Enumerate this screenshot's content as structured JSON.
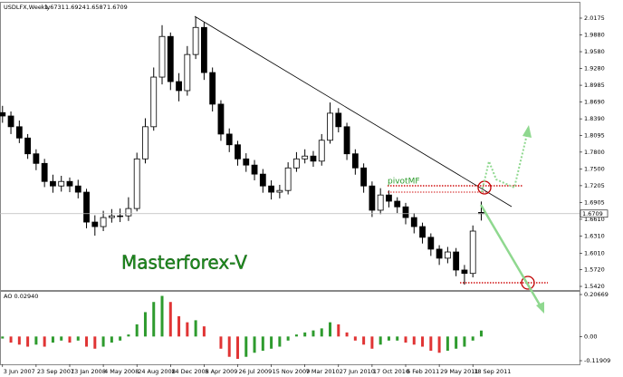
{
  "chart_data": [
    {
      "type": "candlestick",
      "title": "USDLFX,Weekly",
      "annotations": [
        "pivotMF",
        "Masterforex-V"
      ],
      "up_color": "#ffffff",
      "down_color": "#000000",
      "outline_color": "#000000",
      "xlim": [
        -0.3,
        68.7
      ],
      "ylim": [
        1.5356,
        2.0448
      ],
      "yticks": [
        2.0175,
        {
          "value": 1.988,
          "label": "1.9880"
        },
        {
          "value": 1.958,
          "label": "1.9580"
        },
        {
          "value": 1.928,
          "label": "1.9280"
        },
        1.8985,
        {
          "value": 1.869,
          "label": "1.8690"
        },
        {
          "value": 1.839,
          "label": "1.8390"
        },
        1.8095,
        {
          "value": 1.78,
          "label": "1.7800"
        },
        {
          "value": 1.75,
          "label": "1.7500"
        },
        1.7205,
        1.6905,
        {
          "value": 1.661,
          "label": "1.6610"
        },
        {
          "value": 1.631,
          "label": "1.6310"
        },
        {
          "value": 1.601,
          "label": "1.6010"
        },
        {
          "value": 1.572,
          "label": "1.5720"
        },
        {
          "value": 1.542,
          "label": "1.5420"
        }
      ],
      "open": [
        1.85,
        1.844,
        1.825,
        1.805,
        1.777,
        1.76,
        1.728,
        1.72,
        1.728,
        1.72,
        1.709,
        1.656,
        1.648,
        1.664,
        1.667,
        1.667,
        1.68,
        1.768,
        1.825,
        1.913,
        1.985,
        1.905,
        1.889,
        1.953,
        2.001,
        1.921,
        1.865,
        1.812,
        1.793,
        1.768,
        1.757,
        1.741,
        1.72,
        1.709,
        1.712,
        1.752,
        1.768,
        1.773,
        1.764,
        1.801,
        1.849,
        1.825,
        1.777,
        1.752,
        1.72,
        1.677,
        1.704,
        1.693,
        1.683,
        1.664,
        1.648,
        1.629,
        1.608,
        1.592,
        1.603,
        1.571,
        1.565,
        1.6731
      ],
      "high": [
        1.862,
        1.852,
        1.836,
        1.812,
        1.785,
        1.768,
        1.74,
        1.738,
        1.735,
        1.731,
        1.715,
        1.668,
        1.676,
        1.679,
        1.68,
        1.7,
        1.779,
        1.84,
        1.93,
        2.005,
        1.992,
        1.92,
        1.968,
        2.02,
        2.01,
        1.93,
        1.872,
        1.822,
        1.8,
        1.778,
        1.766,
        1.75,
        1.73,
        1.722,
        1.762,
        1.78,
        1.785,
        1.782,
        1.812,
        1.868,
        1.858,
        1.832,
        1.785,
        1.76,
        1.728,
        1.716,
        1.712,
        1.7,
        1.69,
        1.672,
        1.655,
        1.636,
        1.615,
        1.612,
        1.61,
        1.58,
        1.65,
        1.6924
      ],
      "low": [
        1.832,
        1.812,
        1.796,
        1.768,
        1.748,
        1.718,
        1.708,
        1.71,
        1.709,
        1.698,
        1.645,
        1.632,
        1.64,
        1.655,
        1.656,
        1.658,
        1.675,
        1.76,
        1.818,
        1.9,
        1.89,
        1.87,
        1.88,
        1.945,
        1.908,
        1.852,
        1.8,
        1.78,
        1.756,
        1.745,
        1.73,
        1.708,
        1.696,
        1.698,
        1.705,
        1.745,
        1.76,
        1.754,
        1.756,
        1.795,
        1.815,
        1.766,
        1.74,
        1.708,
        1.665,
        1.67,
        1.682,
        1.672,
        1.652,
        1.636,
        1.618,
        1.596,
        1.58,
        1.583,
        1.56,
        1.545,
        1.558,
        1.6587
      ],
      "close": [
        1.844,
        1.825,
        1.805,
        1.777,
        1.76,
        1.728,
        1.72,
        1.728,
        1.72,
        1.709,
        1.656,
        1.648,
        1.664,
        1.667,
        1.667,
        1.68,
        1.768,
        1.825,
        1.913,
        1.985,
        1.905,
        1.889,
        1.953,
        2.001,
        1.921,
        1.865,
        1.812,
        1.793,
        1.768,
        1.757,
        1.741,
        1.72,
        1.709,
        1.712,
        1.752,
        1.768,
        1.773,
        1.764,
        1.801,
        1.849,
        1.825,
        1.777,
        1.752,
        1.72,
        1.677,
        1.704,
        1.693,
        1.683,
        1.664,
        1.648,
        1.629,
        1.608,
        1.592,
        1.603,
        1.571,
        1.565,
        1.64,
        1.6709
      ]
    },
    {
      "type": "histogram",
      "title": "AO 0.02940",
      "up_color": "#2e9b2e",
      "down_color": "#e03434",
      "xlim": [
        -0.3,
        68.7
      ],
      "ylim": [
        -0.1369,
        0.2201
      ],
      "yticks": [
        0.20669,
        {
          "value": 0,
          "label": "0.00"
        },
        -0.11909
      ],
      "xticks": [
        {
          "value": 0,
          "label": "3 Jun 2007"
        },
        {
          "value": 4,
          "label": "23 Sep 2007"
        },
        {
          "value": 8,
          "label": "13 Jan 2008"
        },
        {
          "value": 12,
          "label": "4 May 2008"
        },
        {
          "value": 16,
          "label": "24 Aug 2008"
        },
        {
          "value": 20,
          "label": "14 Dec 2008"
        },
        {
          "value": 24,
          "label": "5 Apr 2009"
        },
        {
          "value": 28,
          "label": "26 Jul 2009"
        },
        {
          "value": 32,
          "label": "15 Nov 2009"
        },
        {
          "value": 36,
          "label": "7 Mar 2010"
        },
        {
          "value": 40,
          "label": "27 Jun 2010"
        },
        {
          "value": 44,
          "label": "17 Oct 2010"
        },
        {
          "value": 48,
          "label": "6 Feb 2011"
        },
        {
          "value": 52,
          "label": "29 May 2011"
        },
        {
          "value": 56,
          "label": "18 Sep 2011"
        }
      ],
      "values": [
        -0.01,
        -0.03,
        -0.04,
        -0.05,
        -0.04,
        -0.05,
        -0.03,
        -0.02,
        -0.03,
        -0.02,
        -0.05,
        -0.06,
        -0.05,
        -0.03,
        -0.02,
        0.01,
        0.06,
        0.12,
        0.17,
        0.2,
        0.17,
        0.1,
        0.07,
        0.08,
        0.05,
        0.0,
        -0.06,
        -0.1,
        -0.11,
        -0.1,
        -0.08,
        -0.07,
        -0.06,
        -0.05,
        -0.02,
        0.01,
        0.02,
        0.03,
        0.04,
        0.07,
        0.06,
        0.02,
        -0.02,
        -0.04,
        -0.06,
        -0.04,
        -0.02,
        -0.02,
        -0.03,
        -0.04,
        -0.05,
        -0.07,
        -0.08,
        -0.07,
        -0.06,
        -0.05,
        -0.02,
        0.0294
      ]
    }
  ]
}
